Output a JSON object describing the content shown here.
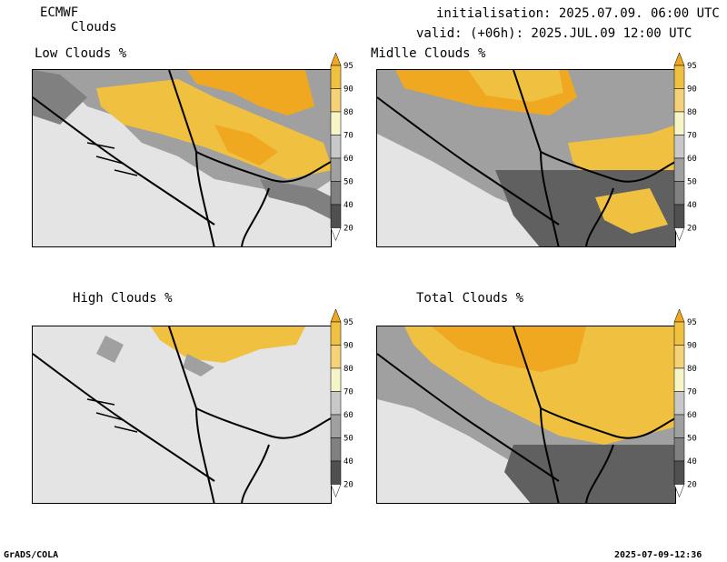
{
  "header": {
    "model": "ECMWF",
    "product": "Clouds",
    "initialisation": "initialisation: 2025.07.09. 06:00 UTC",
    "valid": "valid: (+06h): 2025.JUL.09 12:00 UTC"
  },
  "panels": [
    {
      "title": "Low Clouds %"
    },
    {
      "title": "Midlle Clouds %"
    },
    {
      "title": "High Clouds %"
    },
    {
      "title": "Total Clouds %"
    }
  ],
  "colorbar": {
    "levels": [
      "20",
      "40",
      "50",
      "60",
      "70",
      "80",
      "90",
      "95"
    ],
    "colors": [
      "#ffffff",
      "#505050",
      "#808080",
      "#a0a0a0",
      "#c8c8c8",
      "#f5f5c8",
      "#f5d278",
      "#f0c040",
      "#f0a820"
    ]
  },
  "footer": {
    "left": "GrADS/COLA",
    "right": "2025-07-09-12:36"
  }
}
